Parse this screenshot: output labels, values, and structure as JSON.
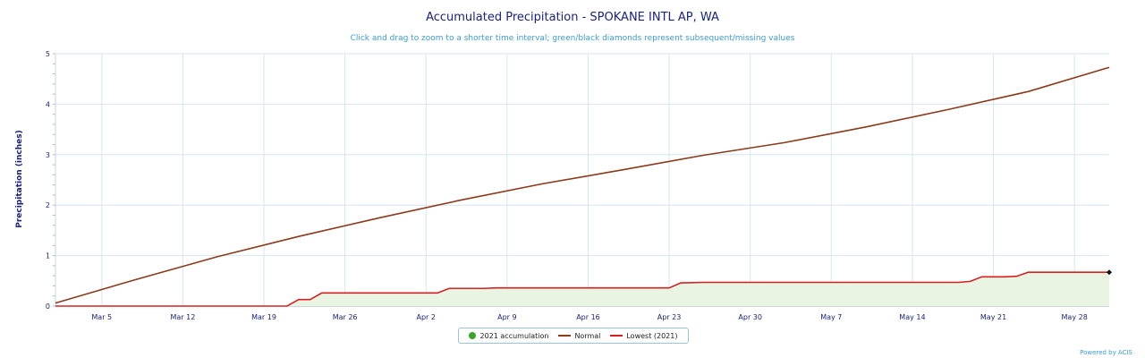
{
  "colors": {
    "normal": "#8b3a1a",
    "lowest": "#d62020",
    "accumulation": "#3aa52a",
    "fill": "#e9f4e2",
    "grid": "#d6e6f2",
    "axis_text": "#1a237e"
  },
  "chart_data": {
    "type": "line",
    "title": "Accumulated Precipitation - SPOKANE INTL AP, WA",
    "subtitle": "Click and drag to zoom to a shorter time interval; green/black diamonds represent subsequent/missing values",
    "ylabel": "Precipitation (inches)",
    "xlabel": "",
    "credits": "Powered by ACIS",
    "ylim": [
      0,
      5
    ],
    "yticks": [
      "0",
      "1",
      "2",
      "3",
      "4",
      "5"
    ],
    "xlim": [
      "Mar 1",
      "May 31"
    ],
    "x_ticks": [
      {
        "date": "Mar 5",
        "label": "Mar 5"
      },
      {
        "date": "Mar 12",
        "label": "Mar 12"
      },
      {
        "date": "Mar 19",
        "label": "Mar 19"
      },
      {
        "date": "Mar 26",
        "label": "Mar 26"
      },
      {
        "date": "Apr 2",
        "label": "Apr 2"
      },
      {
        "date": "Apr 9",
        "label": "Apr 9"
      },
      {
        "date": "Apr 16",
        "label": "Apr 16"
      },
      {
        "date": "Apr 23",
        "label": "Apr 23"
      },
      {
        "date": "Apr 30",
        "label": "Apr 30"
      },
      {
        "date": "May 7",
        "label": "May 7"
      },
      {
        "date": "May 14",
        "label": "May 14"
      },
      {
        "date": "May 21",
        "label": "May 21"
      },
      {
        "date": "May 28",
        "label": "May 28"
      }
    ],
    "legend": {
      "placement": "bottom-center",
      "items": [
        {
          "label": "2021 accumulation",
          "symbol": "dot",
          "color": "#3aa52a"
        },
        {
          "label": "Normal",
          "symbol": "line",
          "color": "#8b3a1a"
        },
        {
          "label": "Lowest (2021)",
          "symbol": "line",
          "color": "#d62020"
        }
      ]
    },
    "series": [
      {
        "name": "Normal",
        "points": [
          {
            "x": "Mar 1",
            "y": 0.06
          },
          {
            "x": "Mar 8",
            "y": 0.53
          },
          {
            "x": "Mar 15",
            "y": 0.98
          },
          {
            "x": "Mar 22",
            "y": 1.38
          },
          {
            "x": "Mar 29",
            "y": 1.75
          },
          {
            "x": "Apr 5",
            "y": 2.1
          },
          {
            "x": "Apr 12",
            "y": 2.42
          },
          {
            "x": "Apr 19",
            "y": 2.7
          },
          {
            "x": "Apr 26",
            "y": 2.99
          },
          {
            "x": "May 3",
            "y": 3.24
          },
          {
            "x": "May 10",
            "y": 3.55
          },
          {
            "x": "May 17",
            "y": 3.89
          },
          {
            "x": "May 24",
            "y": 4.25
          },
          {
            "x": "May 31",
            "y": 4.73
          }
        ]
      },
      {
        "name": "Lowest (2021)",
        "points": [
          {
            "x": "Mar 1",
            "y": 0
          },
          {
            "x": "Mar 21",
            "y": 0
          },
          {
            "x": "Mar 22",
            "y": 0.13
          },
          {
            "x": "Mar 23",
            "y": 0.13
          },
          {
            "x": "Mar 24",
            "y": 0.26
          },
          {
            "x": "Apr 3",
            "y": 0.26
          },
          {
            "x": "Apr 4",
            "y": 0.35
          },
          {
            "x": "Apr 7",
            "y": 0.35
          },
          {
            "x": "Apr 8",
            "y": 0.36
          },
          {
            "x": "Apr 23",
            "y": 0.36
          },
          {
            "x": "Apr 24",
            "y": 0.46
          },
          {
            "x": "Apr 26",
            "y": 0.47
          },
          {
            "x": "May 18",
            "y": 0.47
          },
          {
            "x": "May 19",
            "y": 0.49
          },
          {
            "x": "May 20",
            "y": 0.58
          },
          {
            "x": "May 22",
            "y": 0.58
          },
          {
            "x": "May 23",
            "y": 0.59
          },
          {
            "x": "May 24",
            "y": 0.67
          },
          {
            "x": "May 31",
            "y": 0.67
          }
        ]
      }
    ]
  }
}
